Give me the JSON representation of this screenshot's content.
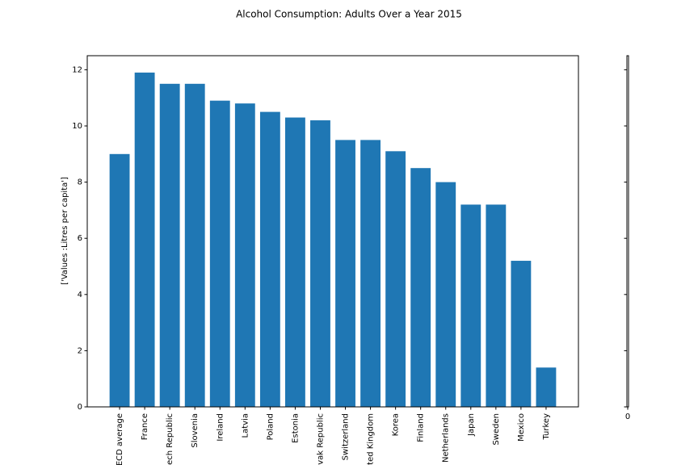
{
  "chart_data": [
    {
      "type": "bar",
      "title": "Alcohol Consumption: Adults Over a Year 2015",
      "y_label": "['Values :Litres per capita']",
      "categories": [
        "ECD average",
        "France",
        "ech Republic",
        "Slovenia",
        "Ireland",
        "Latvia",
        "Poland",
        "Estonia",
        "vak Republic",
        "Switzerland",
        "ted Kingdom",
        "Korea",
        "Finland",
        "Netherlands",
        "Japan",
        "Sweden",
        "Mexico",
        "Turkey"
      ],
      "values": [
        9.0,
        11.9,
        11.5,
        11.5,
        10.9,
        10.8,
        10.5,
        10.3,
        10.2,
        9.5,
        9.5,
        9.1,
        8.5,
        8.0,
        7.2,
        7.2,
        5.2,
        1.4
      ],
      "color": "#1f77b4",
      "ylim": [
        0,
        12.5
      ],
      "yticks": [
        0,
        2,
        4,
        6,
        8,
        10,
        12
      ]
    },
    {
      "type": "empty",
      "ylim": [
        0,
        12.5
      ],
      "yticks": [
        0,
        2,
        4,
        6,
        8,
        10,
        12
      ],
      "xticks": [
        0
      ]
    }
  ]
}
